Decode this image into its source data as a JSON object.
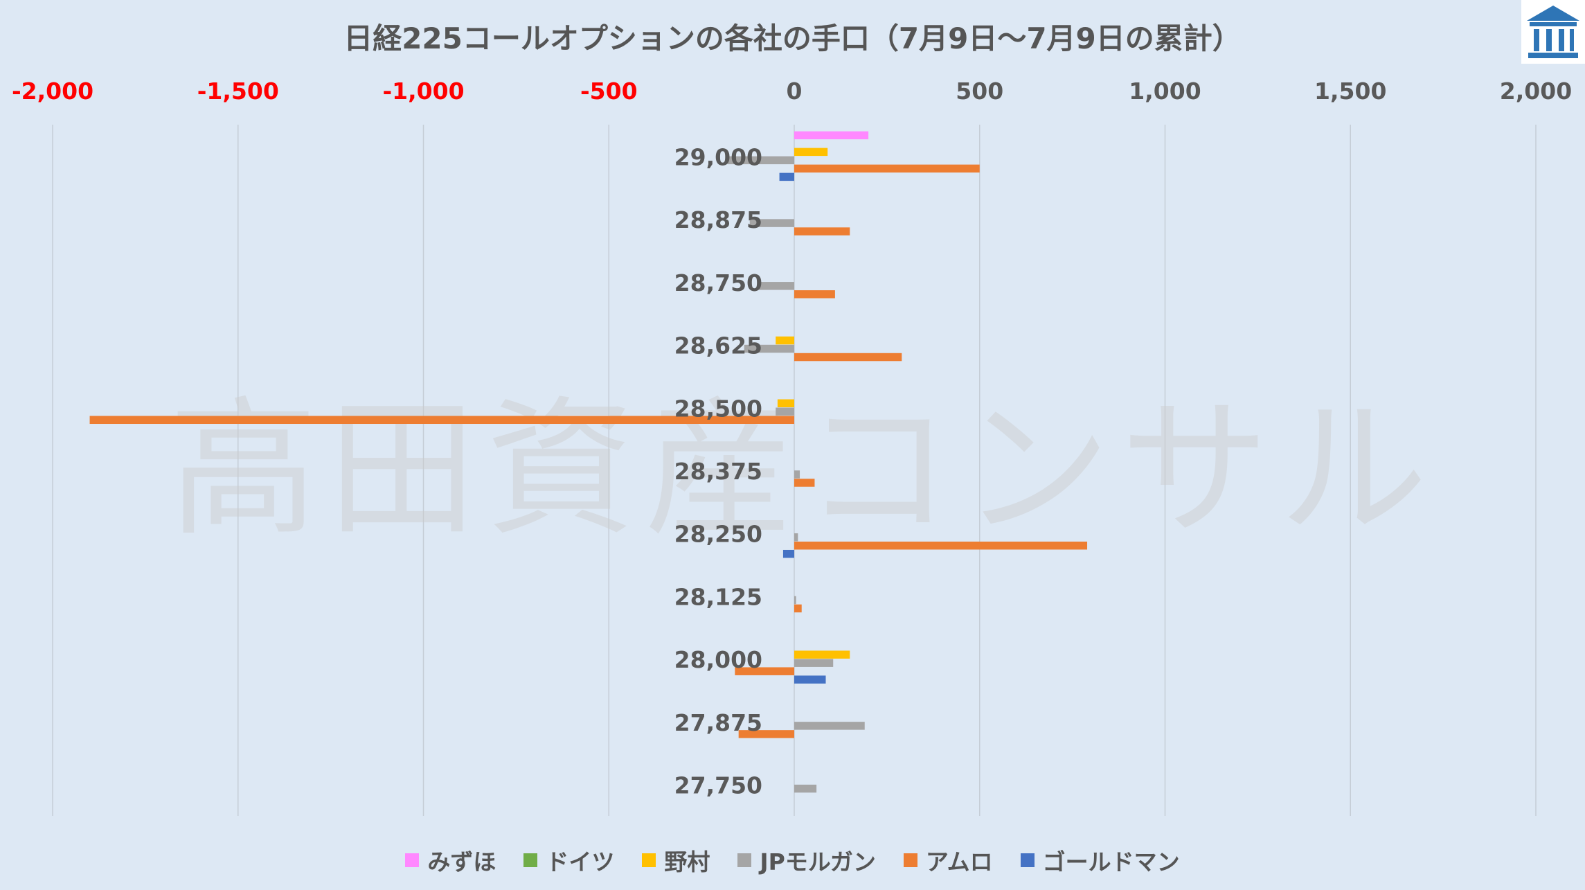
{
  "colors": {
    "mizuho": "#ff88ff",
    "deutsche": "#70ad47",
    "nomura": "#ffc000",
    "jpmorgan": "#a5a5a5",
    "amro": "#ed7d31",
    "goldman": "#4472c4",
    "negative_tick": "#ff0000",
    "positive_tick": "#595959",
    "logo": "#2e75b6"
  },
  "logo_icon": "building-icon",
  "watermark": "高田資産コンサル",
  "chart_data": {
    "type": "bar",
    "orientation": "horizontal",
    "title": "日経225コールオプションの各社の手口（7月9日～7月9日の累計）",
    "xlim": [
      -2000,
      2000
    ],
    "x_ticks": [
      -2000,
      -1500,
      -1000,
      -500,
      0,
      500,
      1000,
      1500,
      2000
    ],
    "x_tick_labels": [
      "-2,000",
      "-1,500",
      "-1,000",
      "-500",
      "0",
      "500",
      "1,000",
      "1,500",
      "2,000"
    ],
    "x_axis_position": "top",
    "grid": "vertical",
    "legend_position": "bottom",
    "categories": [
      "29,000",
      "28,875",
      "28,750",
      "28,625",
      "28,500",
      "28,375",
      "28,250",
      "28,125",
      "28,000",
      "27,875",
      "27,750"
    ],
    "series": [
      {
        "key": "mizuho",
        "name": "みずほ",
        "values": [
          200,
          0,
          0,
          0,
          0,
          0,
          0,
          0,
          0,
          0,
          0
        ]
      },
      {
        "key": "deutsche",
        "name": "ドイツ",
        "values": [
          0,
          0,
          0,
          0,
          0,
          0,
          0,
          0,
          0,
          0,
          0
        ]
      },
      {
        "key": "nomura",
        "name": "野村",
        "values": [
          90,
          0,
          0,
          -50,
          -45,
          0,
          0,
          0,
          150,
          0,
          0
        ]
      },
      {
        "key": "jpmorgan",
        "name": "JPモルガン",
        "values": [
          -180,
          -120,
          -95,
          -135,
          -50,
          15,
          10,
          5,
          105,
          190,
          60
        ]
      },
      {
        "key": "amro",
        "name": "アムロ",
        "values": [
          500,
          150,
          110,
          290,
          -1900,
          55,
          790,
          20,
          -160,
          -150,
          0
        ]
      },
      {
        "key": "goldman",
        "name": "ゴールドマン",
        "values": [
          -40,
          0,
          0,
          0,
          0,
          0,
          -30,
          0,
          85,
          0,
          0
        ]
      }
    ]
  }
}
